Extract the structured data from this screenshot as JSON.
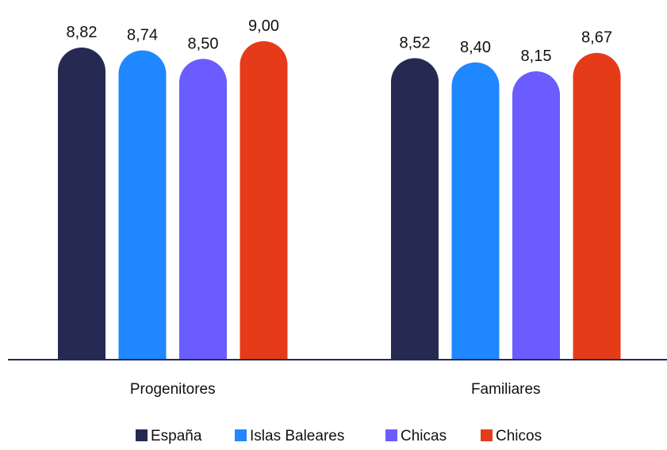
{
  "chart_data": {
    "type": "bar",
    "title": "",
    "xlabel": "",
    "ylabel": "",
    "categories": [
      "Progenitores",
      "Familiares"
    ],
    "series": [
      {
        "name": "España",
        "values": [
          8.82,
          8.52
        ],
        "labels": [
          "8,82",
          "8,52"
        ],
        "color": "#262A52"
      },
      {
        "name": "Islas Baleares",
        "values": [
          8.74,
          8.4
        ],
        "labels": [
          "8,74",
          "8,40"
        ],
        "color": "#1F87FF"
      },
      {
        "name": "Chicas",
        "values": [
          8.5,
          8.15
        ],
        "labels": [
          "8,50",
          "8,15"
        ],
        "color": "#6B5CFF"
      },
      {
        "name": "Chicos",
        "values": [
          9.0,
          8.67
        ],
        "labels": [
          "9,00",
          "8,67"
        ],
        "color": "#E63B19"
      }
    ],
    "ylim": [
      0,
      10
    ],
    "grid": false,
    "legend_position": "bottom",
    "bar_shape": "rounded-top"
  }
}
